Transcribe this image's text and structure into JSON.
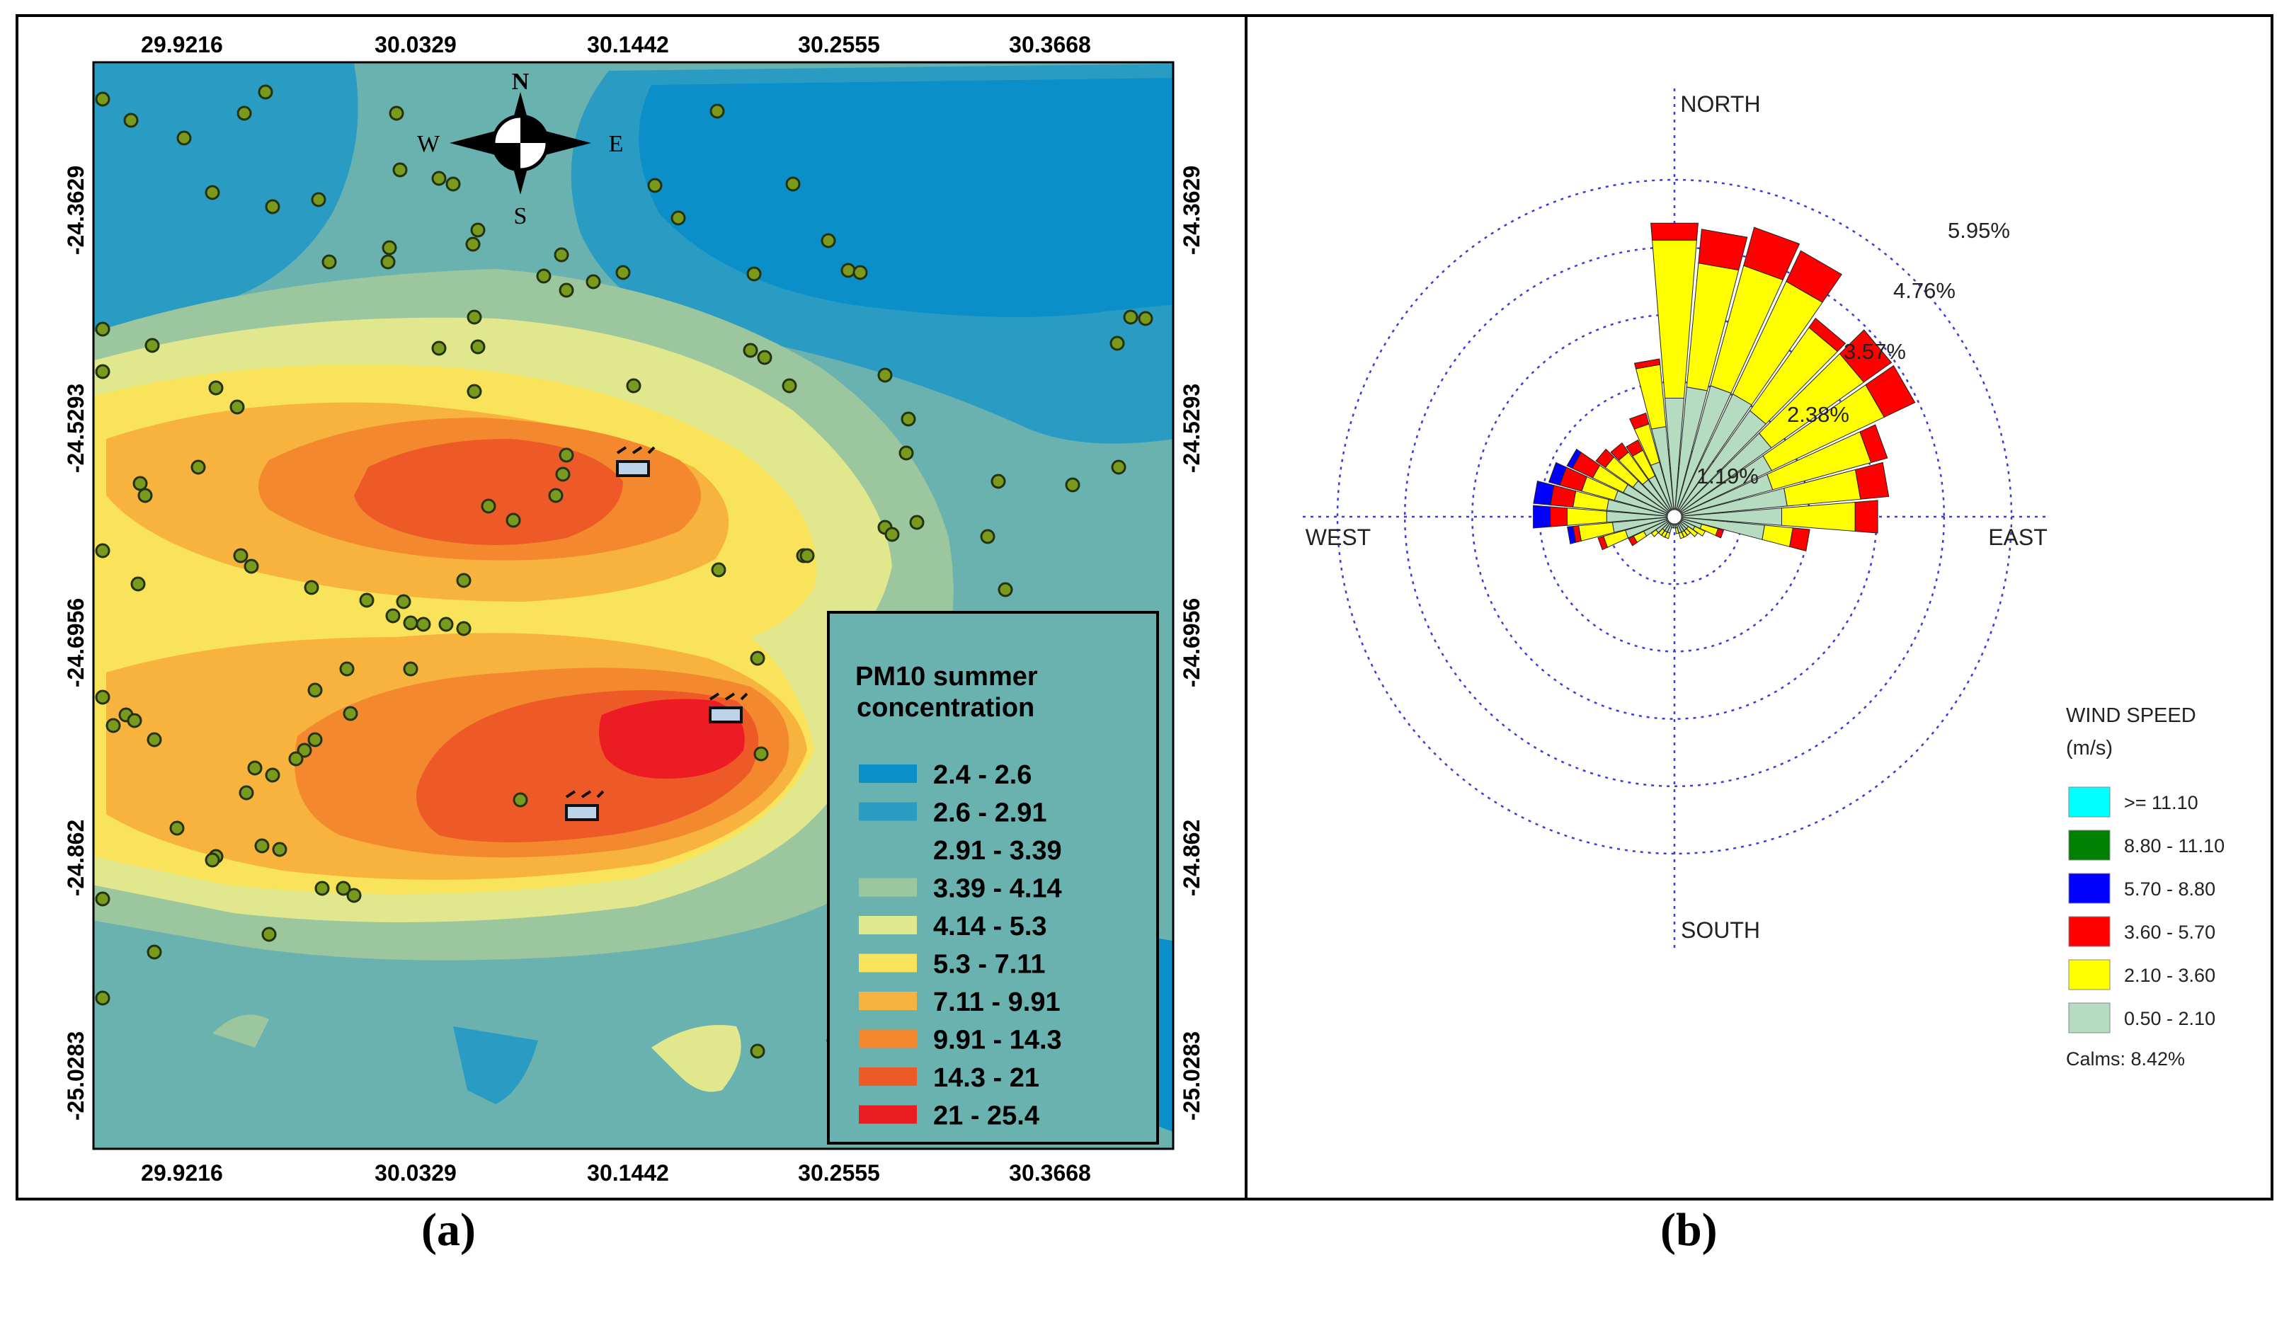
{
  "panel_a": {
    "caption": "(a)",
    "x_ticks": [
      "29.9216",
      "30.0329",
      "30.1442",
      "30.2555",
      "30.3668"
    ],
    "y_ticks": [
      "-24.3629",
      "-24.5293",
      "-24.6956",
      "-24.862",
      "-25.0283"
    ],
    "compass": {
      "N": "N",
      "S": "S",
      "E": "E",
      "W": "W"
    },
    "legend": {
      "title_line1": "PM10 summer",
      "title_line2": "concentration",
      "classes": [
        {
          "label": "2.4 - 2.6",
          "color": "#0a8fc9"
        },
        {
          "label": "2.6 - 2.91",
          "color": "#2a9cc4"
        },
        {
          "label": "2.91 - 3.39",
          "color": "#6ab2b0"
        },
        {
          "label": "3.39 - 4.14",
          "color": "#9cc79e"
        },
        {
          "label": "4.14 - 5.3",
          "color": "#e1e78c"
        },
        {
          "label": "5.3 - 7.11",
          "color": "#f8e35a"
        },
        {
          "label": "7.11 - 9.91",
          "color": "#f8b23e"
        },
        {
          "label": "9.91 - 14.3",
          "color": "#f3882f"
        },
        {
          "label": "14.3 - 21",
          "color": "#ee5a27"
        },
        {
          "label": "21 - 25.4",
          "color": "#ed1c24"
        }
      ]
    }
  },
  "panel_b": {
    "caption": "(b)",
    "directions": {
      "north": "NORTH",
      "south": "SOUTH",
      "east": "EAST",
      "west": "WEST"
    },
    "ring_labels": [
      "1.19%",
      "2.38%",
      "3.57%",
      "4.76%",
      "5.95%"
    ],
    "legend": {
      "title_line1": "WIND SPEED",
      "title_line2": "(m/s)",
      "classes": [
        {
          "label": ">= 11.10",
          "color": "#00ffff"
        },
        {
          "label": "8.80 - 11.10",
          "color": "#008000"
        },
        {
          "label": "5.70 - 8.80",
          "color": "#0000ff"
        },
        {
          "label": "3.60 - 5.70",
          "color": "#ff0000"
        },
        {
          "label": "2.10 - 3.60",
          "color": "#ffff00"
        },
        {
          "label": "0.50 - 2.10",
          "color": "#b5dcc0"
        }
      ],
      "calms": "Calms: 8.42%"
    }
  },
  "chart_data": {
    "type": "wind-rose",
    "title": "",
    "directions_deg": [
      0,
      10,
      20,
      30,
      40,
      50,
      60,
      70,
      80,
      90,
      100,
      110,
      120,
      130,
      140,
      150,
      160,
      170,
      180,
      190,
      200,
      210,
      220,
      230,
      240,
      250,
      260,
      270,
      280,
      290,
      300,
      310,
      320,
      330,
      340,
      350
    ],
    "speed_bins_mps": [
      "0.50 - 2.10",
      "2.10 - 3.60",
      "3.60 - 5.70",
      "5.70 - 8.80"
    ],
    "series": [
      {
        "name": "0.50 - 2.10",
        "values": [
          2.1,
          2.3,
          2.4,
          2.4,
          2.3,
          2.1,
          1.9,
          1.8,
          2.0,
          1.9,
          1.6,
          0.5,
          0.4,
          0.3,
          0.3,
          0.3,
          0.3,
          0.2,
          0.2,
          0.2,
          0.3,
          0.3,
          0.3,
          0.4,
          0.6,
          0.9,
          1.1,
          1.2,
          1.2,
          1.1,
          1.0,
          0.9,
          0.8,
          0.8,
          1.0,
          1.6
        ]
      },
      {
        "name": "2.10 - 3.60",
        "values": [
          2.8,
          2.2,
          2.2,
          2.2,
          1.8,
          2.0,
          2.2,
          1.8,
          1.3,
          1.3,
          0.5,
          0.3,
          0.2,
          0.2,
          0.1,
          0.1,
          0.1,
          0.1,
          0.0,
          0.0,
          0.1,
          0.1,
          0.1,
          0.1,
          0.2,
          0.4,
          0.6,
          0.7,
          0.6,
          0.6,
          0.6,
          0.6,
          0.6,
          0.5,
          0.7,
          1.1
        ]
      },
      {
        "name": "3.60 - 5.70",
        "values": [
          0.3,
          0.6,
          0.7,
          0.6,
          0.2,
          0.6,
          0.6,
          0.3,
          0.5,
          0.4,
          0.3,
          0.1,
          0.0,
          0.0,
          0.0,
          0.0,
          0.0,
          0.0,
          0.0,
          0.0,
          0.0,
          0.0,
          0.0,
          0.0,
          0.1,
          0.1,
          0.1,
          0.3,
          0.4,
          0.4,
          0.4,
          0.2,
          0.2,
          0.2,
          0.2,
          0.1
        ]
      },
      {
        "name": "5.70 - 8.80",
        "values": [
          0,
          0,
          0,
          0,
          0,
          0,
          0,
          0,
          0,
          0,
          0,
          0,
          0,
          0,
          0,
          0,
          0,
          0,
          0,
          0,
          0,
          0,
          0,
          0,
          0,
          0,
          0.1,
          0.3,
          0.3,
          0.2,
          0.1,
          0,
          0,
          0,
          0,
          0
        ]
      }
    ],
    "rings_pct": [
      1.19,
      2.38,
      3.57,
      4.76,
      5.95
    ],
    "calms_pct": 8.42,
    "legend_position": "right"
  }
}
